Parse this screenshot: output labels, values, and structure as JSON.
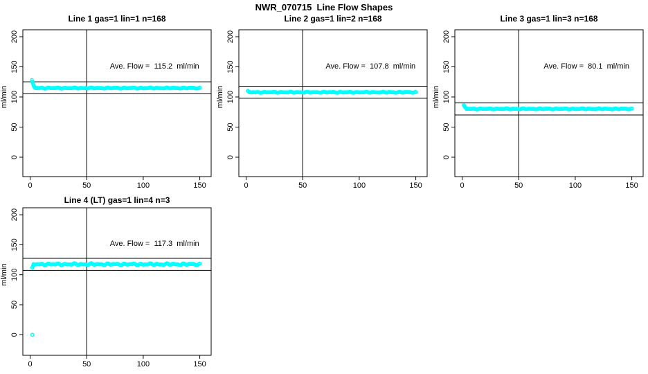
{
  "main_title": "NWR_070715  Line Flow Shapes",
  "colors": {
    "points": "#00ffff",
    "axis": "#000000",
    "background": "#ffffff"
  },
  "chart_data": [
    {
      "type": "scatter",
      "title": "Line 1 gas=1 lin=1 n=168",
      "annotation": {
        "text": "Ave. Flow =  115.2  ml/min",
        "value": 115.2,
        "unit": "ml/min"
      },
      "ylabel": "ml/min",
      "x_ticks": [
        0,
        50,
        100,
        150
      ],
      "y_ticks": [
        0,
        50,
        100,
        150,
        200
      ],
      "xlim": [
        -6,
        160
      ],
      "ylim": [
        -30,
        215
      ],
      "vline_x": 50,
      "ref_lines": [
        125.2,
        105.2
      ],
      "series": {
        "transient_points": [
          [
            1.5,
            128
          ],
          [
            2,
            125
          ],
          [
            2.5,
            122
          ],
          [
            3,
            119.5
          ],
          [
            3.5,
            117.5
          ],
          [
            4,
            116
          ],
          [
            5,
            115.2
          ]
        ],
        "steady": {
          "x_start": 5,
          "x_end": 150,
          "step": 1,
          "value": 114.8,
          "jitter": 0.9
        },
        "outlier_points": []
      }
    },
    {
      "type": "scatter",
      "title": "Line 2 gas=1 lin=2 n=168",
      "annotation": {
        "text": "Ave. Flow =  107.8  ml/min",
        "value": 107.8,
        "unit": "ml/min"
      },
      "ylabel": "ml/min",
      "x_ticks": [
        0,
        50,
        100,
        150
      ],
      "y_ticks": [
        0,
        50,
        100,
        150,
        200
      ],
      "xlim": [
        -6,
        160
      ],
      "ylim": [
        -30,
        215
      ],
      "vline_x": 50,
      "ref_lines": [
        117.8,
        97.8
      ],
      "series": {
        "transient_points": [
          [
            1.5,
            110.2
          ],
          [
            2,
            109.2
          ],
          [
            3,
            108.4
          ]
        ],
        "steady": {
          "x_start": 3,
          "x_end": 150,
          "step": 1,
          "value": 107.8,
          "jitter": 0.8
        },
        "outlier_points": []
      }
    },
    {
      "type": "scatter",
      "title": "Line 3 gas=1 lin=3 n=168",
      "annotation": {
        "text": "Ave. Flow =  80.1  ml/min",
        "value": 80.1,
        "unit": "ml/min"
      },
      "ylabel": "ml/min",
      "x_ticks": [
        0,
        50,
        100,
        150
      ],
      "y_ticks": [
        0,
        50,
        100,
        150,
        200
      ],
      "xlim": [
        -6,
        160
      ],
      "ylim": [
        -30,
        215
      ],
      "vline_x": 50,
      "ref_lines": [
        90.1,
        70.1
      ],
      "series": {
        "transient_points": [
          [
            1.5,
            86.5
          ],
          [
            2,
            85
          ],
          [
            2.5,
            83.5
          ],
          [
            3,
            82.3
          ],
          [
            4,
            81.2
          ]
        ],
        "steady": {
          "x_start": 4,
          "x_end": 150,
          "step": 1,
          "value": 80.3,
          "jitter": 0.9
        },
        "outlier_points": []
      }
    },
    {
      "type": "scatter",
      "title": "Line 4 (LT) gas=1 lin=4 n=3",
      "annotation": {
        "text": "Ave. Flow =  117.3  ml/min",
        "value": 117.3,
        "unit": "ml/min"
      },
      "ylabel": "ml/min",
      "x_ticks": [
        0,
        50,
        100,
        150
      ],
      "y_ticks": [
        0,
        50,
        100,
        150,
        200
      ],
      "xlim": [
        -6,
        160
      ],
      "ylim": [
        -30,
        215
      ],
      "vline_x": 50,
      "ref_lines": [
        127.3,
        107.3
      ],
      "series": {
        "transient_points": [
          [
            2,
            112
          ],
          [
            2.5,
            114.5
          ],
          [
            3,
            116.2
          ]
        ],
        "steady": {
          "x_start": 3,
          "x_end": 150,
          "step": 1,
          "value": 117.5,
          "jitter": 1.8
        },
        "outlier_points": [
          [
            2,
            0
          ]
        ]
      }
    }
  ]
}
